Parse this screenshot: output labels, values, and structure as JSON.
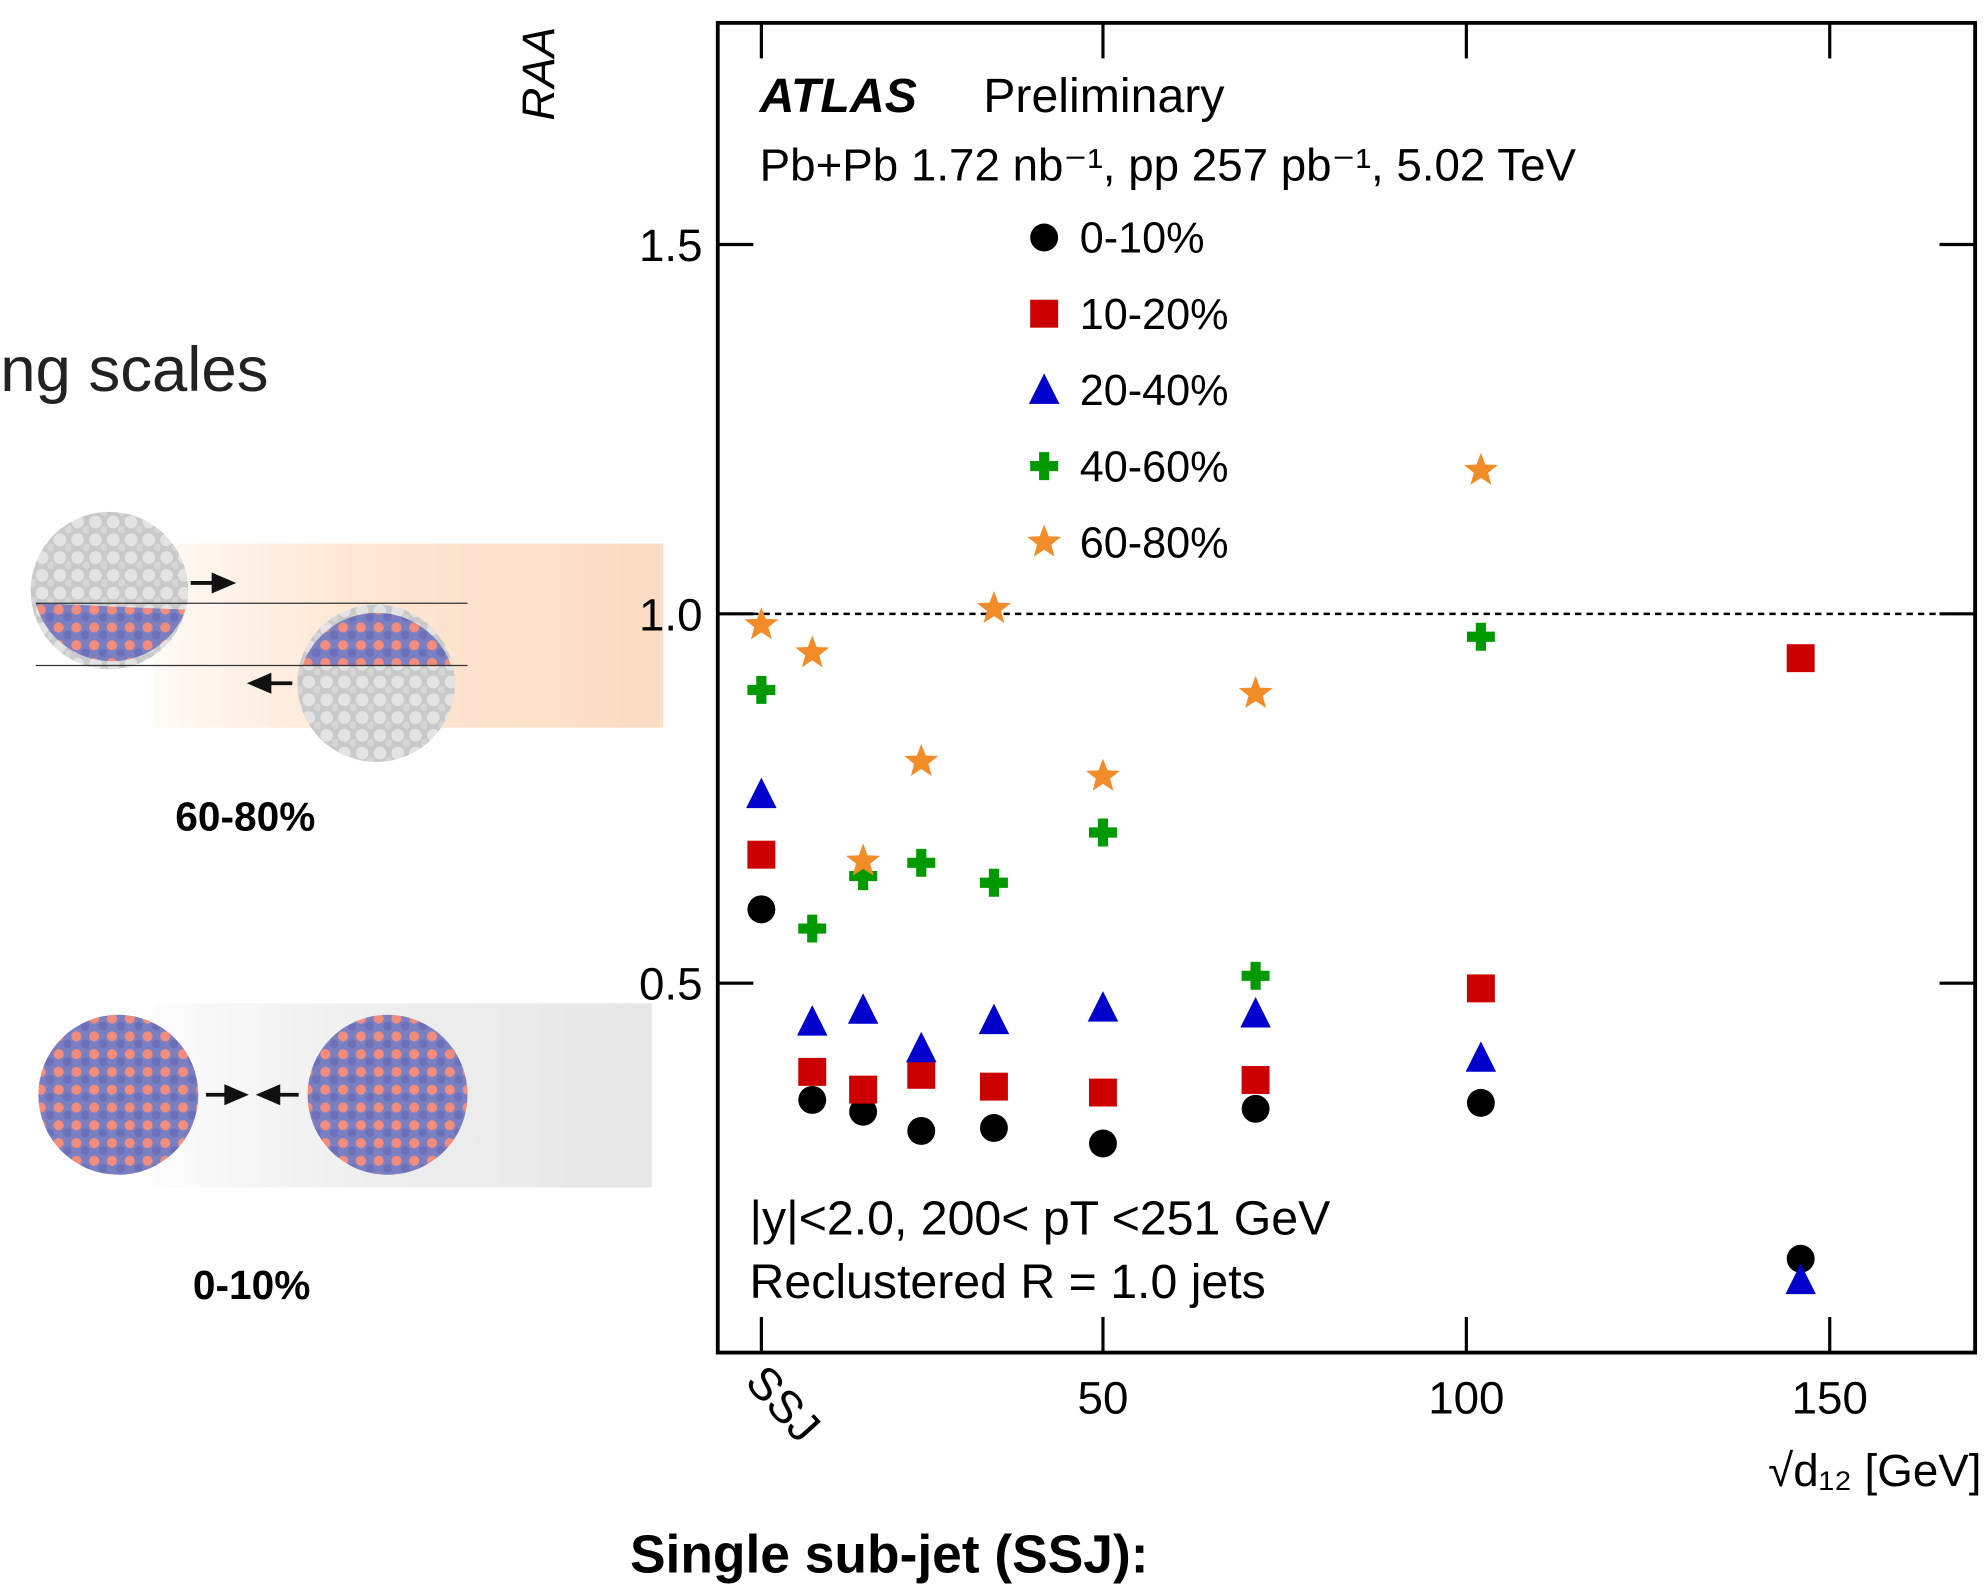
{
  "slide": {
    "heading_fragment": "ng scales",
    "centrality_labels": [
      "60-80%",
      "0-10%"
    ],
    "footer": "Single sub-jet (SSJ):"
  },
  "chart_data": {
    "type": "scatter",
    "y_label": "RAA",
    "x_label": "√d₁₂ [GeV]",
    "annotations": [
      "ATLAS",
      "Preliminary",
      "Pb+Pb 1.72 nb⁻¹, pp 257 pb⁻¹, 5.02 TeV",
      "|y|<2.0, 200< pT <251 GeV",
      "Reclustered R = 1.0 jets"
    ],
    "xlim": [
      -3,
      170
    ],
    "ylim": [
      0,
      1.8
    ],
    "xticks": [
      {
        "value": 3,
        "label": "SSJ"
      },
      50,
      100,
      150
    ],
    "yticks": [
      0.5,
      {
        "value": 1,
        "label": "1.0"
      },
      1.5
    ],
    "reference_line": 1,
    "x": [
      3,
      10,
      17,
      25,
      35,
      50,
      71,
      102,
      146
    ],
    "series": [
      {
        "name": "0-10%",
        "color": "#000000",
        "marker": "circle",
        "values": [
          0.6,
          0.342,
          0.326,
          0.3,
          0.304,
          0.283,
          0.33,
          0.338,
          0.127
        ]
      },
      {
        "name": "10-20%",
        "color": "#cc0000",
        "marker": "square",
        "values": [
          0.674,
          0.38,
          0.356,
          0.376,
          0.36,
          0.352,
          0.369,
          0.493,
          0.94
        ]
      },
      {
        "name": "20-40%",
        "color": "#0000cc",
        "marker": "triangle",
        "values": [
          0.756,
          0.448,
          0.464,
          0.412,
          0.45,
          0.467,
          0.459,
          0.399,
          0.098
        ]
      },
      {
        "name": "40-60%",
        "color": "#009900",
        "marker": "cross",
        "values": [
          0.897,
          0.574,
          0.645,
          0.663,
          0.636,
          0.704,
          0.51,
          0.969,
          null
        ]
      },
      {
        "name": "60-80%",
        "color": "#f28c28",
        "marker": "star",
        "values": [
          0.985,
          0.947,
          0.665,
          0.8,
          1.007,
          0.78,
          0.892,
          1.194,
          null
        ]
      }
    ]
  }
}
